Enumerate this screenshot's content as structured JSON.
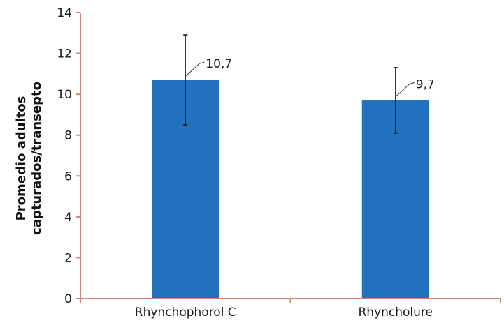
{
  "chart_data": {
    "type": "bar",
    "title": "",
    "xlabel": "",
    "ylabel": [
      "Promedio adultos",
      "capturados/transepto"
    ],
    "categories": [
      "Rhynchophorol C",
      "Rhyncholure"
    ],
    "values": [
      10.7,
      9.7
    ],
    "data_labels": [
      "10,7",
      "9,7"
    ],
    "error_bars": [
      {
        "low": 8.5,
        "high": 12.9
      },
      {
        "low": 8.1,
        "high": 11.3
      }
    ],
    "ylim": [
      0,
      14
    ],
    "yticks": [
      "0",
      "2",
      "4",
      "6",
      "8",
      "10",
      "12",
      "14"
    ],
    "grid": false,
    "legend": "none",
    "colors": {
      "bar": "#2271bc",
      "axis": "#c98a7a",
      "error_bar": "#222222",
      "text": "#1a1a1a"
    }
  }
}
